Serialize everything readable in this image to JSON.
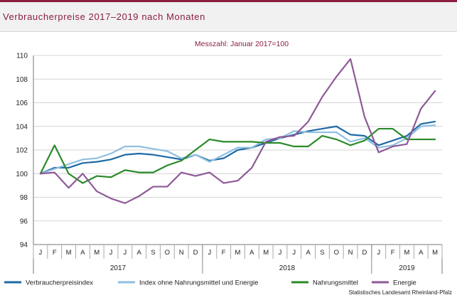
{
  "header": {
    "title": "Verbraucherpreise 2017–2019 nach Monaten"
  },
  "source_note": "Statistisches Landesamt Rheinland-Pfalz",
  "chart_data": {
    "type": "line",
    "subtitle": "Messzahl: Januar 2017=100",
    "months": [
      "J",
      "F",
      "M",
      "A",
      "M",
      "J",
      "J",
      "A",
      "S",
      "O",
      "N",
      "D",
      "J",
      "F",
      "M",
      "A",
      "M",
      "J",
      "J",
      "A",
      "S",
      "O",
      "N",
      "D",
      "J",
      "F",
      "M",
      "A",
      "M"
    ],
    "years": [
      {
        "label": "2017",
        "start": 0,
        "end": 11
      },
      {
        "label": "2018",
        "start": 12,
        "end": 23
      },
      {
        "label": "2019",
        "start": 24,
        "end": 28
      }
    ],
    "ylim": [
      94,
      110
    ],
    "yticks": [
      94,
      96,
      98,
      100,
      102,
      104,
      106,
      108,
      110
    ],
    "grid": true,
    "legend_position": "bottom",
    "series": [
      {
        "name": "Verbraucherpreisindex",
        "color": "#1f6aa5",
        "values": [
          100.0,
          100.5,
          100.5,
          100.9,
          101.0,
          101.2,
          101.6,
          101.7,
          101.6,
          101.4,
          101.2,
          101.6,
          101.1,
          101.3,
          102.0,
          102.2,
          102.6,
          103.0,
          103.3,
          103.6,
          103.8,
          104.0,
          103.3,
          103.2,
          102.4,
          102.8,
          103.2,
          104.2,
          104.4
        ]
      },
      {
        "name": "Index ohne Nahrungsmittel und Energie",
        "color": "#8fbfe0",
        "values": [
          100.0,
          100.4,
          100.8,
          101.2,
          101.3,
          101.7,
          102.3,
          102.3,
          102.1,
          101.9,
          101.3,
          101.6,
          101.0,
          101.6,
          102.2,
          102.2,
          102.9,
          103.0,
          103.6,
          103.5,
          103.5,
          103.5,
          102.7,
          103.0,
          102.2,
          102.4,
          103.0,
          104.0,
          104.1
        ]
      },
      {
        "name": "Nahrungsmittel",
        "color": "#2a8a2a",
        "values": [
          100.0,
          102.4,
          100.0,
          99.2,
          99.8,
          99.7,
          100.3,
          100.1,
          100.1,
          100.7,
          101.1,
          102.0,
          102.9,
          102.7,
          102.7,
          102.7,
          102.6,
          102.6,
          102.3,
          102.3,
          103.2,
          102.9,
          102.4,
          102.8,
          103.8,
          103.8,
          102.9,
          102.9,
          102.9
        ]
      },
      {
        "name": "Energie",
        "color": "#8e5a97",
        "values": [
          100.0,
          100.1,
          98.8,
          100.0,
          98.5,
          97.9,
          97.5,
          98.1,
          98.9,
          98.9,
          100.1,
          99.8,
          100.1,
          99.2,
          99.4,
          100.5,
          102.7,
          103.1,
          103.2,
          104.4,
          106.5,
          108.2,
          109.7,
          104.8,
          101.8,
          102.3,
          102.5,
          105.5,
          107.0
        ]
      }
    ]
  }
}
